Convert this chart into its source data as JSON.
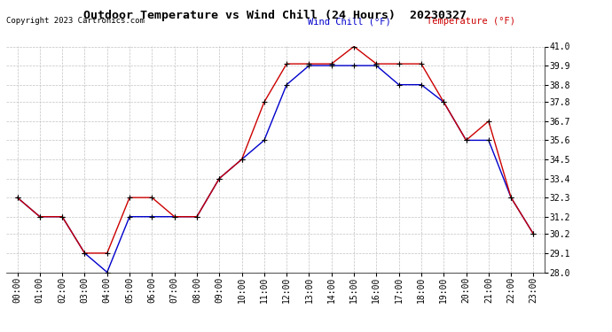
{
  "title": "Outdoor Temperature vs Wind Chill (24 Hours)  20230327",
  "copyright": "Copyright 2023 Cartronics.com",
  "legend_wind_chill": "Wind Chill (°F)",
  "legend_temperature": "Temperature (°F)",
  "hours": [
    0,
    1,
    2,
    3,
    4,
    5,
    6,
    7,
    8,
    9,
    10,
    11,
    12,
    13,
    14,
    15,
    16,
    17,
    18,
    19,
    20,
    21,
    22,
    23
  ],
  "hour_labels": [
    "00:00",
    "01:00",
    "02:00",
    "03:00",
    "04:00",
    "05:00",
    "06:00",
    "07:00",
    "08:00",
    "09:00",
    "10:00",
    "11:00",
    "12:00",
    "13:00",
    "14:00",
    "15:00",
    "16:00",
    "17:00",
    "18:00",
    "19:00",
    "20:00",
    "21:00",
    "22:00",
    "23:00"
  ],
  "temperature": [
    32.3,
    31.2,
    31.2,
    29.1,
    29.1,
    32.3,
    32.3,
    31.2,
    31.2,
    33.4,
    34.5,
    37.8,
    40.0,
    40.0,
    40.0,
    41.0,
    40.0,
    40.0,
    40.0,
    37.8,
    35.6,
    36.7,
    32.3,
    30.2
  ],
  "wind_chill": [
    32.3,
    31.2,
    31.2,
    29.1,
    28.0,
    31.2,
    31.2,
    31.2,
    31.2,
    33.4,
    34.5,
    35.6,
    38.8,
    39.9,
    39.9,
    39.9,
    39.9,
    38.8,
    38.8,
    37.8,
    35.6,
    35.6,
    32.3,
    30.2
  ],
  "temp_color": "#cc0000",
  "wind_color": "#0000cc",
  "marker_color": "#000000",
  "background_color": "#ffffff",
  "grid_color": "#bbbbbb",
  "ylim_min": 28.0,
  "ylim_max": 41.0,
  "yticks": [
    28.0,
    29.1,
    30.2,
    31.2,
    32.3,
    33.4,
    34.5,
    35.6,
    36.7,
    37.8,
    38.8,
    39.9,
    41.0
  ],
  "title_fontsize": 9.5,
  "copyright_fontsize": 6.5,
  "legend_fontsize": 7.5,
  "tick_fontsize": 7.0
}
